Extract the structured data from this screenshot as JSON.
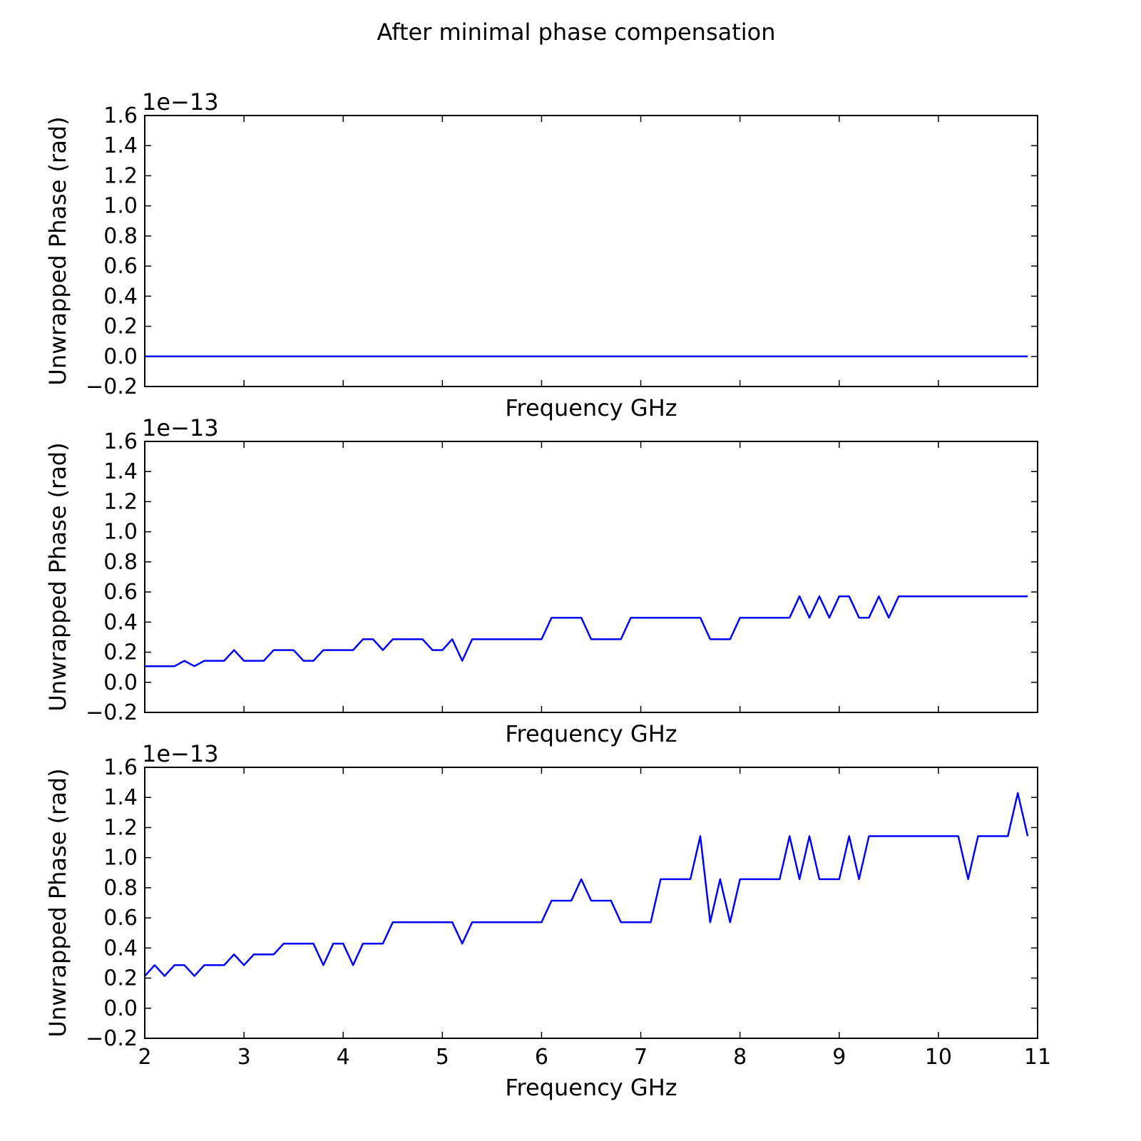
{
  "figure": {
    "title": "After minimal phase compensation"
  },
  "chart_data": [
    {
      "type": "line",
      "xlabel": "Frequency GHz",
      "ylabel": "Unwrapped Phase (rad)",
      "offset_label": "1e−13",
      "xlim": [
        2,
        11
      ],
      "ylim": [
        -0.2,
        1.6
      ],
      "y_scale_factor": "1e-13",
      "x_ticks": [
        2,
        3,
        4,
        5,
        6,
        7,
        8,
        9,
        10,
        11
      ],
      "x_tick_labels": [],
      "y_ticks": [
        -0.2,
        0.0,
        0.2,
        0.4,
        0.6,
        0.8,
        1.0,
        1.2,
        1.4,
        1.6
      ],
      "y_tick_labels": [
        "−0.2",
        "0.0",
        "0.2",
        "0.4",
        "0.6",
        "0.8",
        "1.0",
        "1.2",
        "1.4",
        "1.6"
      ],
      "line_color": "#0000ff",
      "x": [
        2.0,
        10.9
      ],
      "y": [
        0.0,
        0.0
      ]
    },
    {
      "type": "line",
      "xlabel": "Frequency GHz",
      "ylabel": "Unwrapped Phase (rad)",
      "offset_label": "1e−13",
      "xlim": [
        2,
        11
      ],
      "ylim": [
        -0.2,
        1.6
      ],
      "y_scale_factor": "1e-13",
      "x_ticks": [
        2,
        3,
        4,
        5,
        6,
        7,
        8,
        9,
        10,
        11
      ],
      "x_tick_labels": [],
      "y_ticks": [
        -0.2,
        0.0,
        0.2,
        0.4,
        0.6,
        0.8,
        1.0,
        1.2,
        1.4,
        1.6
      ],
      "y_tick_labels": [
        "−0.2",
        "0.0",
        "0.2",
        "0.4",
        "0.6",
        "0.8",
        "1.0",
        "1.2",
        "1.4",
        "1.6"
      ],
      "line_color": "#0000ff",
      "x": [
        2.0,
        2.1,
        2.2,
        2.3,
        2.4,
        2.5,
        2.6,
        2.7,
        2.8,
        2.9,
        3.0,
        3.1,
        3.2,
        3.3,
        3.4,
        3.5,
        3.6,
        3.7,
        3.8,
        3.9,
        4.0,
        4.1,
        4.2,
        4.3,
        4.4,
        4.5,
        4.6,
        4.7,
        4.8,
        4.9,
        5.0,
        5.1,
        5.2,
        5.3,
        5.4,
        5.5,
        5.6,
        5.7,
        5.8,
        5.9,
        6.0,
        6.1,
        6.2,
        6.3,
        6.4,
        6.5,
        6.6,
        6.7,
        6.8,
        6.9,
        7.0,
        7.1,
        7.2,
        7.3,
        7.4,
        7.5,
        7.6,
        7.7,
        7.8,
        7.9,
        8.0,
        8.1,
        8.2,
        8.3,
        8.4,
        8.5,
        8.6,
        8.7,
        8.8,
        8.9,
        9.0,
        9.1,
        9.2,
        9.3,
        9.4,
        9.5,
        9.6,
        9.7,
        9.8,
        9.9,
        10.0,
        10.1,
        10.2,
        10.3,
        10.4,
        10.5,
        10.6,
        10.7,
        10.8,
        10.9
      ],
      "y": [
        0.107,
        0.107,
        0.107,
        0.107,
        0.143,
        0.107,
        0.143,
        0.143,
        0.143,
        0.214,
        0.143,
        0.143,
        0.143,
        0.214,
        0.214,
        0.214,
        0.143,
        0.143,
        0.214,
        0.214,
        0.214,
        0.214,
        0.286,
        0.286,
        0.214,
        0.286,
        0.286,
        0.286,
        0.286,
        0.214,
        0.214,
        0.286,
        0.143,
        0.286,
        0.286,
        0.286,
        0.286,
        0.286,
        0.286,
        0.286,
        0.286,
        0.429,
        0.429,
        0.429,
        0.429,
        0.286,
        0.286,
        0.286,
        0.286,
        0.429,
        0.429,
        0.429,
        0.429,
        0.429,
        0.429,
        0.429,
        0.429,
        0.286,
        0.286,
        0.286,
        0.429,
        0.429,
        0.429,
        0.429,
        0.429,
        0.429,
        0.571,
        0.429,
        0.571,
        0.429,
        0.571,
        0.571,
        0.429,
        0.429,
        0.571,
        0.429,
        0.571,
        0.571,
        0.571,
        0.571,
        0.571,
        0.571,
        0.571,
        0.571,
        0.571,
        0.571,
        0.571,
        0.571,
        0.571,
        0.571
      ]
    },
    {
      "type": "line",
      "xlabel": "Frequency GHz",
      "ylabel": "Unwrapped Phase (rad)",
      "offset_label": "1e−13",
      "xlim": [
        2,
        11
      ],
      "ylim": [
        -0.2,
        1.6
      ],
      "y_scale_factor": "1e-13",
      "x_ticks": [
        2,
        3,
        4,
        5,
        6,
        7,
        8,
        9,
        10,
        11
      ],
      "x_tick_labels": [
        "2",
        "3",
        "4",
        "5",
        "6",
        "7",
        "8",
        "9",
        "10",
        "11"
      ],
      "y_ticks": [
        -0.2,
        0.0,
        0.2,
        0.4,
        0.6,
        0.8,
        1.0,
        1.2,
        1.4,
        1.6
      ],
      "y_tick_labels": [
        "−0.2",
        "0.0",
        "0.2",
        "0.4",
        "0.6",
        "0.8",
        "1.0",
        "1.2",
        "1.4",
        "1.6"
      ],
      "line_color": "#0000ff",
      "x": [
        2.0,
        2.1,
        2.2,
        2.3,
        2.4,
        2.5,
        2.6,
        2.7,
        2.8,
        2.9,
        3.0,
        3.1,
        3.2,
        3.3,
        3.4,
        3.5,
        3.6,
        3.7,
        3.8,
        3.9,
        4.0,
        4.1,
        4.2,
        4.3,
        4.4,
        4.5,
        4.6,
        4.7,
        4.8,
        4.9,
        5.0,
        5.1,
        5.2,
        5.3,
        5.4,
        5.5,
        5.6,
        5.7,
        5.8,
        5.9,
        6.0,
        6.1,
        6.2,
        6.3,
        6.4,
        6.5,
        6.6,
        6.7,
        6.8,
        6.9,
        7.0,
        7.1,
        7.2,
        7.3,
        7.4,
        7.5,
        7.6,
        7.7,
        7.8,
        7.9,
        8.0,
        8.1,
        8.2,
        8.3,
        8.4,
        8.5,
        8.6,
        8.7,
        8.8,
        8.9,
        9.0,
        9.1,
        9.2,
        9.3,
        9.4,
        9.5,
        9.6,
        9.7,
        9.8,
        9.9,
        10.0,
        10.1,
        10.2,
        10.3,
        10.4,
        10.5,
        10.6,
        10.7,
        10.8,
        10.9
      ],
      "y": [
        0.214,
        0.286,
        0.214,
        0.286,
        0.286,
        0.214,
        0.286,
        0.286,
        0.286,
        0.357,
        0.286,
        0.357,
        0.357,
        0.357,
        0.429,
        0.429,
        0.429,
        0.429,
        0.286,
        0.429,
        0.429,
        0.286,
        0.429,
        0.429,
        0.429,
        0.571,
        0.571,
        0.571,
        0.571,
        0.571,
        0.571,
        0.571,
        0.429,
        0.571,
        0.571,
        0.571,
        0.571,
        0.571,
        0.571,
        0.571,
        0.571,
        0.714,
        0.714,
        0.714,
        0.857,
        0.714,
        0.714,
        0.714,
        0.571,
        0.571,
        0.571,
        0.571,
        0.857,
        0.857,
        0.857,
        0.857,
        1.143,
        0.571,
        0.857,
        0.571,
        0.857,
        0.857,
        0.857,
        0.857,
        0.857,
        1.143,
        0.857,
        1.143,
        0.857,
        0.857,
        0.857,
        1.143,
        0.857,
        1.143,
        1.143,
        1.143,
        1.143,
        1.143,
        1.143,
        1.143,
        1.143,
        1.143,
        1.143,
        0.857,
        1.143,
        1.143,
        1.143,
        1.143,
        1.429,
        1.143
      ]
    }
  ]
}
